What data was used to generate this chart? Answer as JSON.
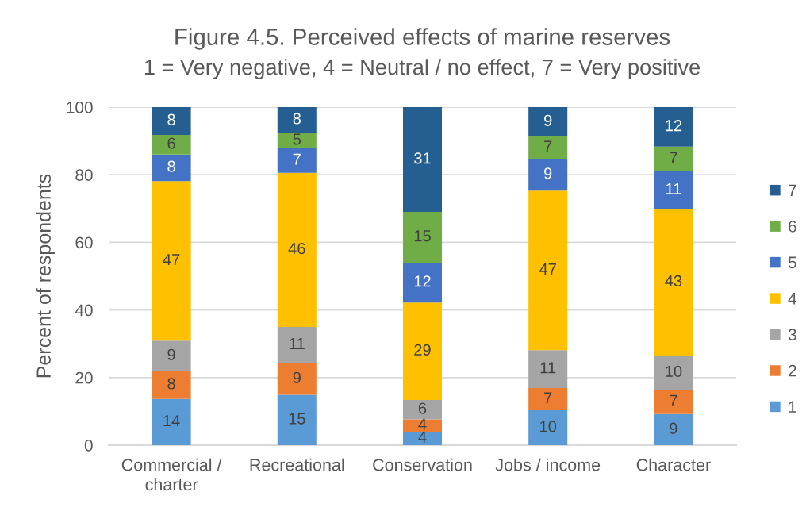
{
  "chart_data": {
    "type": "bar",
    "title": "Figure 4.5. Perceived effects of marine reserves",
    "subtitle": "1 = Very negative, 4 = Neutral / no effect, 7 = Very positive",
    "ylabel": "Percent of respondents",
    "categories": [
      "Commercial / charter",
      "Recreational",
      "Conservation",
      "Jobs / income",
      "Character"
    ],
    "stacked": true,
    "series": [
      {
        "name": "1",
        "color": "#5b9bd5",
        "values": [
          13.7,
          14.9,
          4.0,
          10.3,
          9.2
        ],
        "value_labels": [
          "14",
          "15",
          "4",
          "10",
          "9"
        ]
      },
      {
        "name": "2",
        "color": "#ed7d31",
        "values": [
          8.2,
          9.4,
          3.6,
          6.6,
          7.2
        ],
        "value_labels": [
          "8",
          "9",
          "4",
          "7",
          "7"
        ]
      },
      {
        "name": "3",
        "color": "#a5a5a5",
        "values": [
          9.0,
          10.7,
          5.8,
          11.2,
          10.1
        ],
        "value_labels": [
          "9",
          "11",
          "6",
          "11",
          "10"
        ]
      },
      {
        "name": "4",
        "color": "#ffc000",
        "values": [
          47.2,
          45.6,
          28.8,
          47.2,
          43.4
        ],
        "value_labels": [
          "47",
          "46",
          "29",
          "47",
          "43"
        ]
      },
      {
        "name": "5",
        "color": "#4472c4",
        "values": [
          7.9,
          7.2,
          11.8,
          9.4,
          11.1
        ],
        "value_labels": [
          "8",
          "7",
          "12",
          "9",
          "11"
        ]
      },
      {
        "name": "6",
        "color": "#70ad47",
        "values": [
          5.8,
          4.6,
          15.0,
          6.6,
          7.3
        ],
        "value_labels": [
          "6",
          "5",
          "15",
          "7",
          "7"
        ]
      },
      {
        "name": "7",
        "color": "#255e91",
        "values": [
          8.2,
          7.6,
          31.0,
          8.7,
          11.7
        ],
        "value_labels": [
          "8",
          "8",
          "31",
          "9",
          "12"
        ]
      }
    ],
    "ylim": [
      0,
      100
    ],
    "yticks": [
      0,
      20,
      40,
      60,
      80,
      100
    ],
    "grid": "y",
    "legend": "right"
  }
}
